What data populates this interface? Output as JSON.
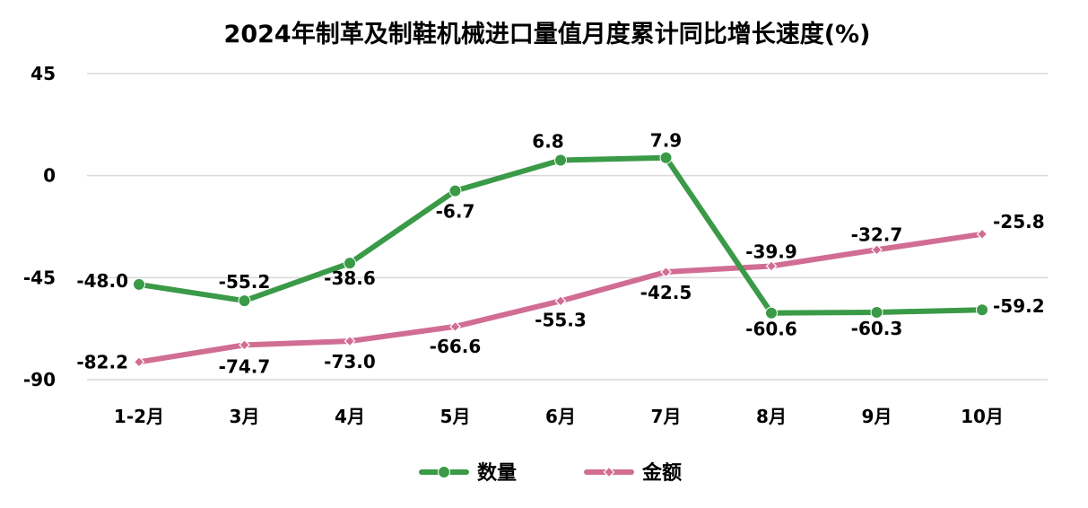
{
  "chart_data": {
    "type": "line",
    "title": "2024年制革及制鞋机械进口量值月度累计同比增长速度(%)",
    "categories": [
      "1-2月",
      "3月",
      "4月",
      "5月",
      "6月",
      "7月",
      "8月",
      "9月",
      "10月"
    ],
    "series": [
      {
        "name": "数量",
        "color": "#3a9a47",
        "marker": "circle",
        "values": [
          -48.0,
          -55.2,
          -38.6,
          -6.7,
          6.8,
          7.9,
          -60.6,
          -60.3,
          -59.2
        ],
        "labels": [
          "-48.0",
          "-55.2",
          "-38.6",
          "-6.7",
          "6.8",
          "7.9",
          "-60.6",
          "-60.3",
          "-59.2"
        ]
      },
      {
        "name": "金额",
        "color": "#d16d93",
        "marker": "diamond",
        "values": [
          -82.2,
          -74.7,
          -73.0,
          -66.6,
          -55.3,
          -42.5,
          -39.9,
          -32.7,
          -25.8
        ],
        "labels": [
          "-82.2",
          "-74.7",
          "-73.0",
          "-66.6",
          "-55.3",
          "-42.5",
          "-39.9",
          "-32.7",
          "-25.8"
        ]
      }
    ],
    "ylim": [
      -90,
      45
    ],
    "yticks": [
      "45",
      "0",
      "-45",
      "-90"
    ],
    "grid": true,
    "legend": "bottom"
  }
}
